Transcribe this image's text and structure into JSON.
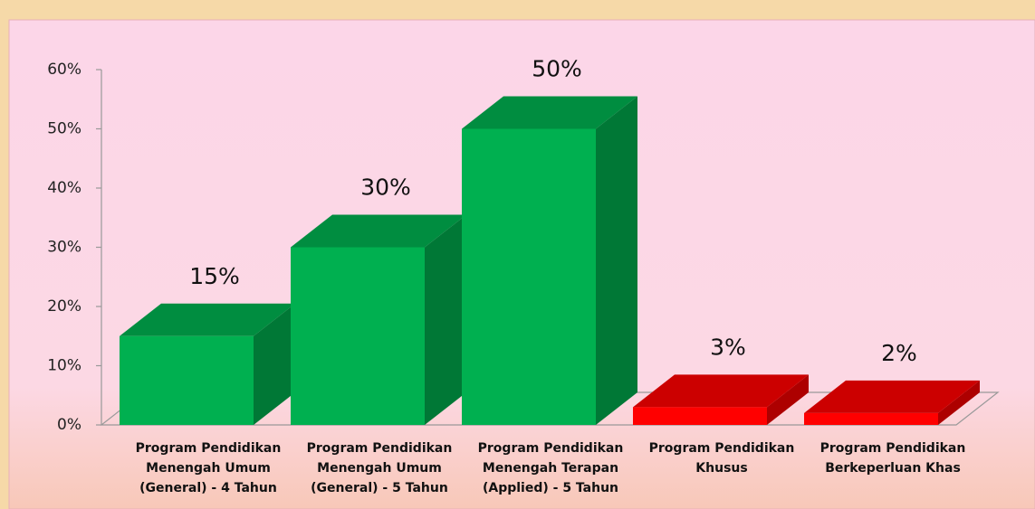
{
  "chart_data": {
    "type": "bar3d",
    "categories": [
      [
        "Program Pendidikan",
        "Menengah Umum",
        "(General) - 4 Tahun"
      ],
      [
        "Program Pendidikan",
        "Menengah Umum",
        "(General) - 5 Tahun"
      ],
      [
        "Program Pendidikan",
        "Menengah Terapan",
        "(Applied) - 5 Tahun"
      ],
      [
        "Program Pendidikan",
        "Khusus"
      ],
      [
        "Program Pendidikan",
        "Berkeperluan Khas"
      ]
    ],
    "values": [
      15,
      30,
      50,
      3,
      2
    ],
    "value_labels": [
      "15%",
      "30%",
      "50%",
      "3%",
      "2%"
    ],
    "colors": [
      "#00b050",
      "#00b050",
      "#00b050",
      "#ff0000",
      "#ff0000"
    ],
    "ylim": [
      0,
      60
    ],
    "yticks": [
      {
        "value": 0,
        "label": "0%"
      },
      {
        "value": 10,
        "label": "10%"
      },
      {
        "value": 20,
        "label": "20%"
      },
      {
        "value": 30,
        "label": "30%"
      },
      {
        "value": 40,
        "label": "40%"
      },
      {
        "value": 50,
        "label": "50%"
      },
      {
        "value": 60,
        "label": "60%"
      }
    ]
  }
}
